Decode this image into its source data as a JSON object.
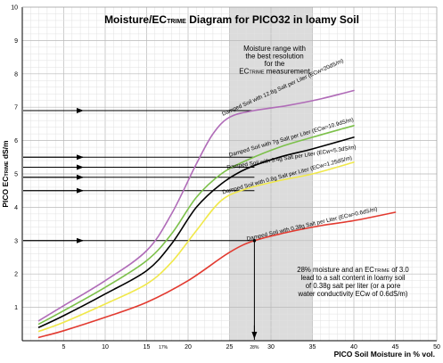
{
  "chart_data": {
    "type": "line",
    "title": "Moisture/ECTRIME Diagram for PICO32 in loamy Soil",
    "title_parts": {
      "pre": "Moisture/EC",
      "sub": "TRIME",
      "post": " Diagram for PICO32 in loamy Soil"
    },
    "xlabel": "PICO Soil Moisture in % vol.",
    "ylabel_parts": {
      "pre": "PICO  EC",
      "sub": "TRIME",
      "post": " dS/m"
    },
    "xlim": [
      0,
      50
    ],
    "ylim": [
      0,
      10
    ],
    "x_ticks": [
      5,
      10,
      15,
      20,
      25,
      30,
      35,
      40,
      45,
      50
    ],
    "y_ticks": [
      1,
      2,
      3,
      4,
      5,
      6,
      7,
      8,
      9,
      10
    ],
    "extra_x_ticks": [
      "17%",
      "28%"
    ],
    "grid": true,
    "band": {
      "x_range": [
        25,
        35
      ],
      "lines": [
        "Moisture range with",
        "the best resolution",
        "for the",
        "ECTRIME measurement"
      ]
    },
    "series": [
      {
        "name": "Damped Soil with 12.8g Salt per Liter (ECw=20dS/m)",
        "color": "#b06cb8",
        "x": [
          2,
          5,
          10,
          15,
          18,
          21,
          23,
          25,
          28,
          32,
          36,
          40
        ],
        "y": [
          0.6,
          1.05,
          1.8,
          2.7,
          3.8,
          5.3,
          6.2,
          6.7,
          6.9,
          7.05,
          7.25,
          7.5
        ]
      },
      {
        "name": "Damped Soil with 7g Salt per Liter (ECw=10.9dS/m)",
        "color": "#7cc04a",
        "x": [
          2,
          5,
          10,
          15,
          18,
          21,
          24,
          27,
          31,
          35,
          40
        ],
        "y": [
          0.5,
          0.9,
          1.6,
          2.4,
          3.2,
          4.3,
          5.0,
          5.4,
          5.8,
          6.1,
          6.45
        ]
      },
      {
        "name": "Damped Soil with 3.4g Salt per Liter (ECw=5.3dS/m)",
        "color": "#000000",
        "x": [
          2,
          5,
          10,
          15,
          18,
          21,
          24,
          27,
          31,
          35,
          40
        ],
        "y": [
          0.4,
          0.75,
          1.4,
          2.1,
          2.9,
          4.0,
          4.7,
          5.15,
          5.5,
          5.75,
          6.1
        ]
      },
      {
        "name": "Damped Soil with 0.8g Salt per Liter (ECw=1.25dS/m)",
        "color": "#f0e84a",
        "x": [
          2,
          5,
          10,
          15,
          18,
          21,
          24,
          27,
          31,
          35,
          40
        ],
        "y": [
          0.28,
          0.55,
          1.1,
          1.7,
          2.35,
          3.3,
          4.2,
          4.55,
          4.8,
          5.0,
          5.35
        ]
      },
      {
        "name": "Damped Soil with 0.38g Salt per Liter (ECw=0.6dS/m)",
        "color": "#e23a30",
        "x": [
          2,
          5,
          10,
          15,
          20,
          25,
          28,
          32,
          36,
          40,
          45
        ],
        "y": [
          0.1,
          0.3,
          0.7,
          1.15,
          1.8,
          2.65,
          3.0,
          3.25,
          3.45,
          3.6,
          3.85
        ]
      }
    ],
    "reference_arrows": {
      "y_values": [
        6.9,
        5.5,
        5.2,
        4.9,
        4.5,
        3.0
      ],
      "x_value": 28
    },
    "annotation": {
      "lines": [
        {
          "pre": "28% moisture and an EC",
          "sub": "TRIME",
          "post": " of 3.0"
        },
        {
          "pre": "lead to a salt content in loamy soil",
          "sub": "",
          "post": ""
        },
        {
          "pre": "of 0.38g salt per liter (or a pore",
          "sub": "",
          "post": ""
        },
        {
          "pre": "water conductivity ECw of 0.6dS/m)",
          "sub": "",
          "post": ""
        }
      ]
    }
  }
}
